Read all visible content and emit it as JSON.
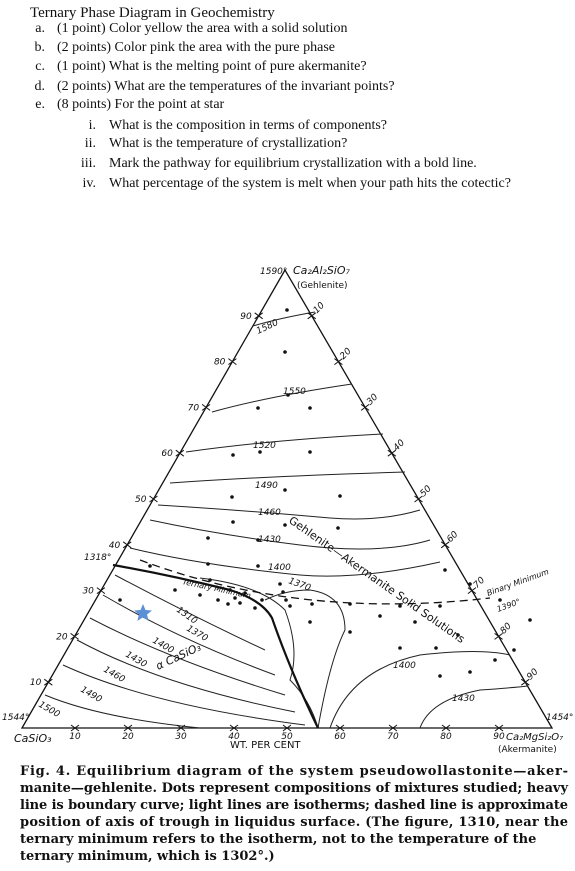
{
  "title": "Ternary Phase Diagram in Geochemistry",
  "questions": [
    {
      "marker": "a.",
      "text": "(1 point) Color yellow the area with a solid solution"
    },
    {
      "marker": "b.",
      "text": "(2 points) Color pink the area with the pure phase"
    },
    {
      "marker": "c.",
      "text": "(1 point) What is the melting point of pure akermanite?"
    },
    {
      "marker": "d.",
      "text": "(2 points) What are the temperatures of the invariant points?"
    },
    {
      "marker": "e.",
      "text": "(8 points) For the point at star"
    }
  ],
  "subquestions": [
    {
      "marker": "i.",
      "text": "What is the composition in terms of components?"
    },
    {
      "marker": "ii.",
      "text": "What is the temperature of crystallization?"
    },
    {
      "marker": "iii.",
      "text": "Mark the pathway for equilibrium crystallization with a bold line."
    },
    {
      "marker": "iv.",
      "text": "What percentage of the system is melt when your path hits the cotectic?"
    }
  ],
  "diagram": {
    "top_vertex": {
      "temp": "1590°",
      "formula": "Ca₂Al₂SiO₇",
      "name": "(Gehlenite)"
    },
    "left_vertex": {
      "temp": "1544°",
      "formula": "CaSiO₃"
    },
    "right_vertex": {
      "temp": "1454°",
      "formula": "Ca₂MgSi₂O₇",
      "name": "(Akermanite)"
    },
    "left_edge_ticks": [
      "90",
      "80",
      "70",
      "60",
      "50",
      "40",
      "30",
      "20",
      "10"
    ],
    "right_edge_ticks": [
      "10",
      "20",
      "30",
      "40",
      "50",
      "60",
      "70",
      "80",
      "90"
    ],
    "bottom_ticks": [
      "10",
      "20",
      "30",
      "40",
      "50",
      "60",
      "70",
      "80",
      "90"
    ],
    "isotherm_labels": [
      "1580",
      "1550",
      "1520",
      "1490",
      "1460",
      "1430",
      "1400",
      "1370"
    ],
    "lower_left_isotherm_labels": [
      "1370",
      "1400",
      "1430",
      "1460",
      "1490",
      "1500"
    ],
    "lower_right_isotherm_labels": [
      "1400",
      "1430"
    ],
    "solid_solution_label": "Gehlenite—Akermanite Solid Solutions",
    "ternary_minimum_label": "Ternary Minimum",
    "ternary_minimum_isotherm": "1310",
    "phase_label": "α CaSiO₃",
    "binary_point_temp": "1318°",
    "binary_minimum_label": "Binary Minimum",
    "binary_minimum_temp": "1390°",
    "axis_label": "WT. PER CENT"
  },
  "caption": {
    "lines": [
      "Fig. 4.  Equilibrium diagram of the system pseudowollastonite—aker-",
      "manite—gehlenite.  Dots represent compositions of mixtures studied; heavy",
      "line is boundary curve; light lines are isotherms; dashed line is approximate",
      "position of axis of trough in liquidus surface.  (The figure, 1310, near the",
      "ternary minimum refers to the isotherm, not to the temperature of the",
      "ternary minimum, which is 1302°.)"
    ]
  }
}
